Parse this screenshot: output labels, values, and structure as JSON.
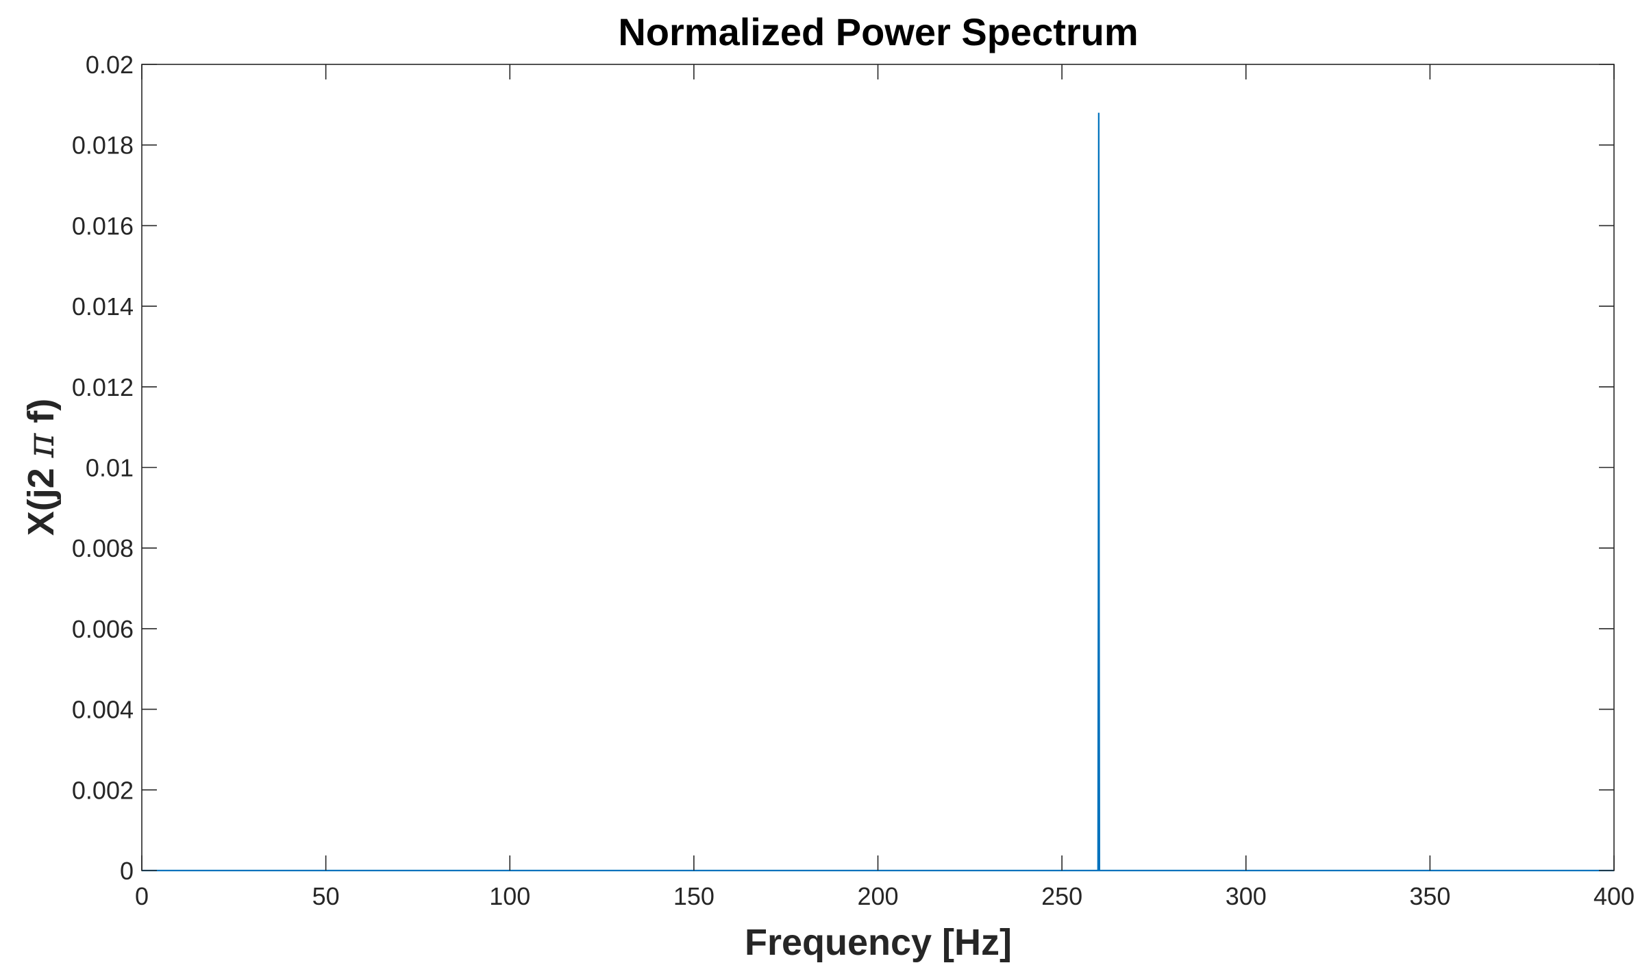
{
  "chart_data": {
    "type": "line",
    "title": "Normalized Power Spectrum",
    "xlabel": "Frequency [Hz]",
    "ylabel": {
      "prefix": "X(j2 ",
      "symbol": "π",
      "suffix": " f)"
    },
    "xlim": [
      0,
      400
    ],
    "ylim": [
      0,
      0.02
    ],
    "xticks": [
      0,
      50,
      100,
      150,
      200,
      250,
      300,
      350,
      400
    ],
    "xtick_labels": [
      "0",
      "50",
      "100",
      "150",
      "200",
      "250",
      "300",
      "350",
      "400"
    ],
    "yticks": [
      0,
      0.002,
      0.004,
      0.006,
      0.008,
      0.01,
      0.012,
      0.014,
      0.016,
      0.018,
      0.02
    ],
    "ytick_labels": [
      "0",
      "0.002",
      "0.004",
      "0.006",
      "0.008",
      "0.01",
      "0.012",
      "0.014",
      "0.016",
      "0.018",
      "0.02"
    ],
    "grid": false,
    "series": [
      {
        "color": "#0072BD",
        "x": [
          0,
          259.8,
          259.9,
          260.0,
          260.1,
          260.2,
          400
        ],
        "y": [
          0,
          0,
          0.0065,
          0.0188,
          0.0065,
          0,
          0
        ]
      }
    ]
  }
}
